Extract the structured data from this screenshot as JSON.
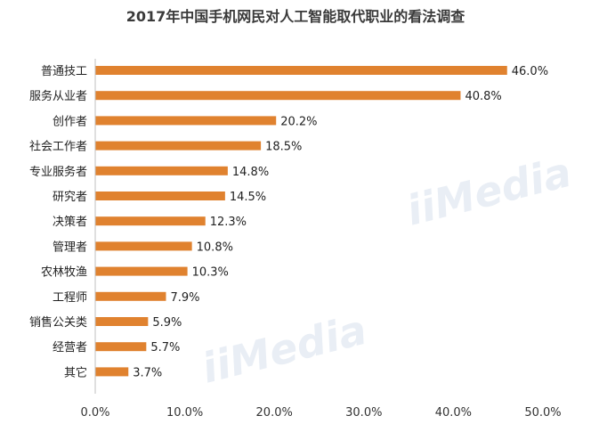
{
  "chart_data": {
    "type": "bar",
    "orientation": "horizontal",
    "title": "2017年中国手机网民对人工智能取代职业的看法调查",
    "categories": [
      "普通技工",
      "服务从业者",
      "创作者",
      "社会工作者",
      "专业服务者",
      "研究者",
      "决策者",
      "管理者",
      "农林牧渔",
      "工程师",
      "销售公关类",
      "经营者",
      "其它"
    ],
    "values": [
      46.0,
      40.8,
      20.2,
      18.5,
      14.8,
      14.5,
      12.3,
      10.8,
      10.3,
      7.9,
      5.9,
      5.7,
      3.7
    ],
    "value_labels": [
      "46.0%",
      "40.8%",
      "20.2%",
      "18.5%",
      "14.8%",
      "14.5%",
      "12.3%",
      "10.8%",
      "10.3%",
      "7.9%",
      "5.9%",
      "5.7%",
      "3.7%"
    ],
    "xlim": [
      0,
      50
    ],
    "xticks": [
      0,
      10,
      20,
      30,
      40,
      50
    ],
    "xtick_labels": [
      "0.0%",
      "10.0%",
      "20.0%",
      "30.0%",
      "40.0%",
      "50.0%"
    ],
    "xlabel": "",
    "ylabel": "",
    "grid": false,
    "legend": "none",
    "bar_color": "#E0822F",
    "axis_color": "#BFBFBF",
    "watermark": "iiMedia"
  }
}
